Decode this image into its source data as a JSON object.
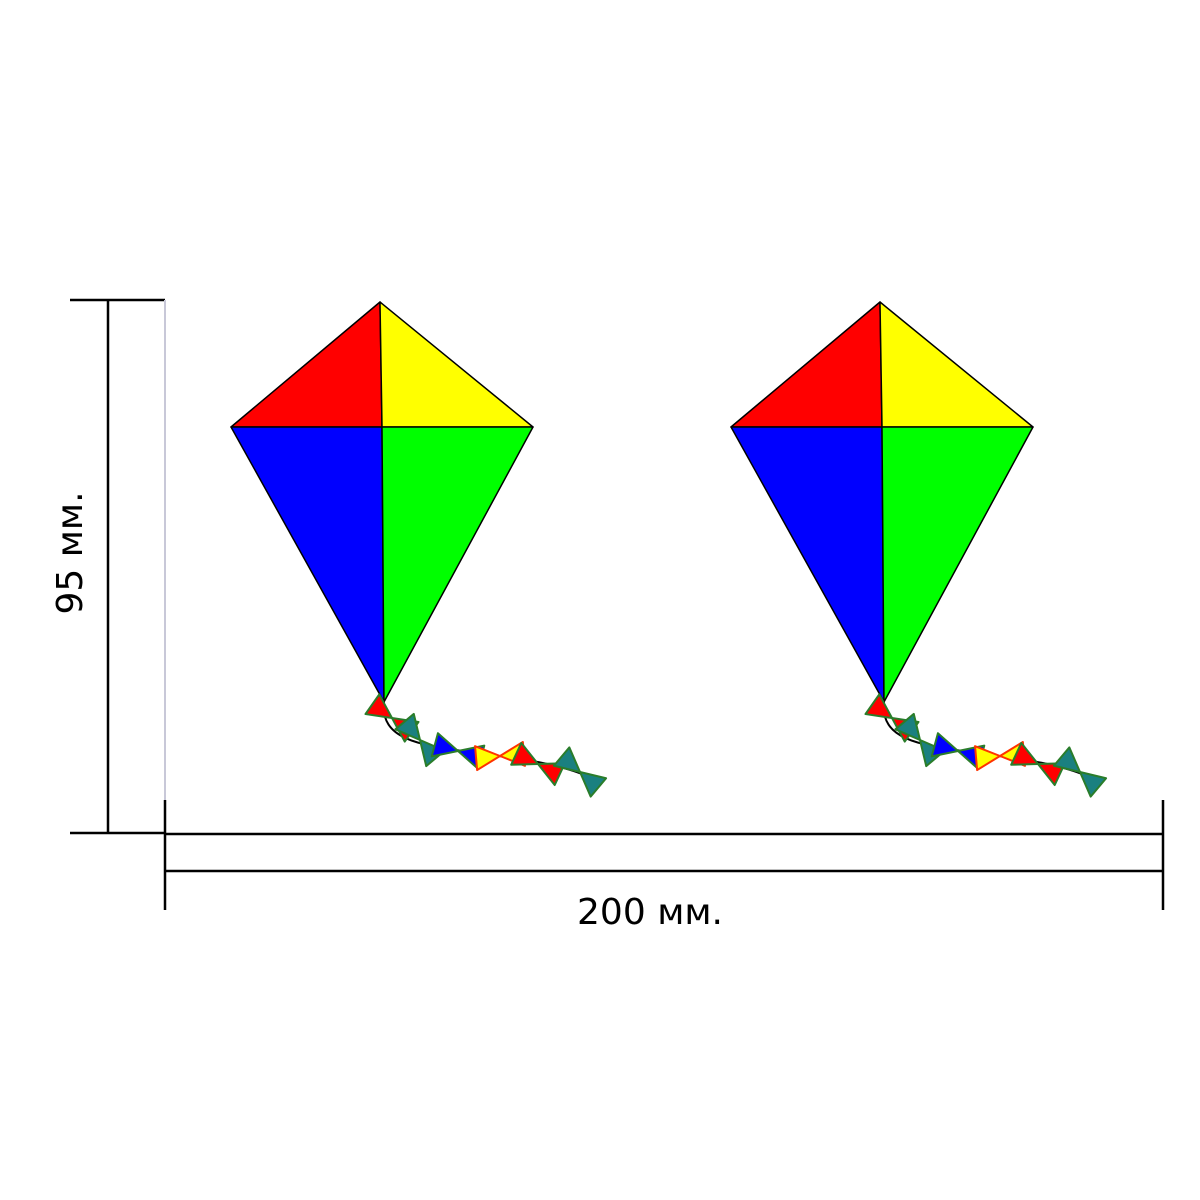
{
  "dimensions": {
    "height_label": "95 мм.",
    "width_label": "200 мм."
  },
  "kite_colors": {
    "top_left": "#ff0000",
    "top_right": "#ffff00",
    "bottom_left": "#0000ff",
    "bottom_right": "#00ff00"
  },
  "bow_colors": {
    "red": {
      "fill": "#ff0000",
      "edge": "#2a7d2a"
    },
    "teal": {
      "fill": "#1a8080",
      "edge": "#2a7d2a"
    },
    "blue": {
      "fill": "#0000ff",
      "edge": "#2a7d2a"
    },
    "yellow": {
      "fill": "#ffff00",
      "edge": "#ff3300"
    }
  },
  "kites_count_label": "",
  "tail_bows": [
    "red",
    "teal",
    "blue",
    "yellow",
    "red",
    "teal"
  ]
}
